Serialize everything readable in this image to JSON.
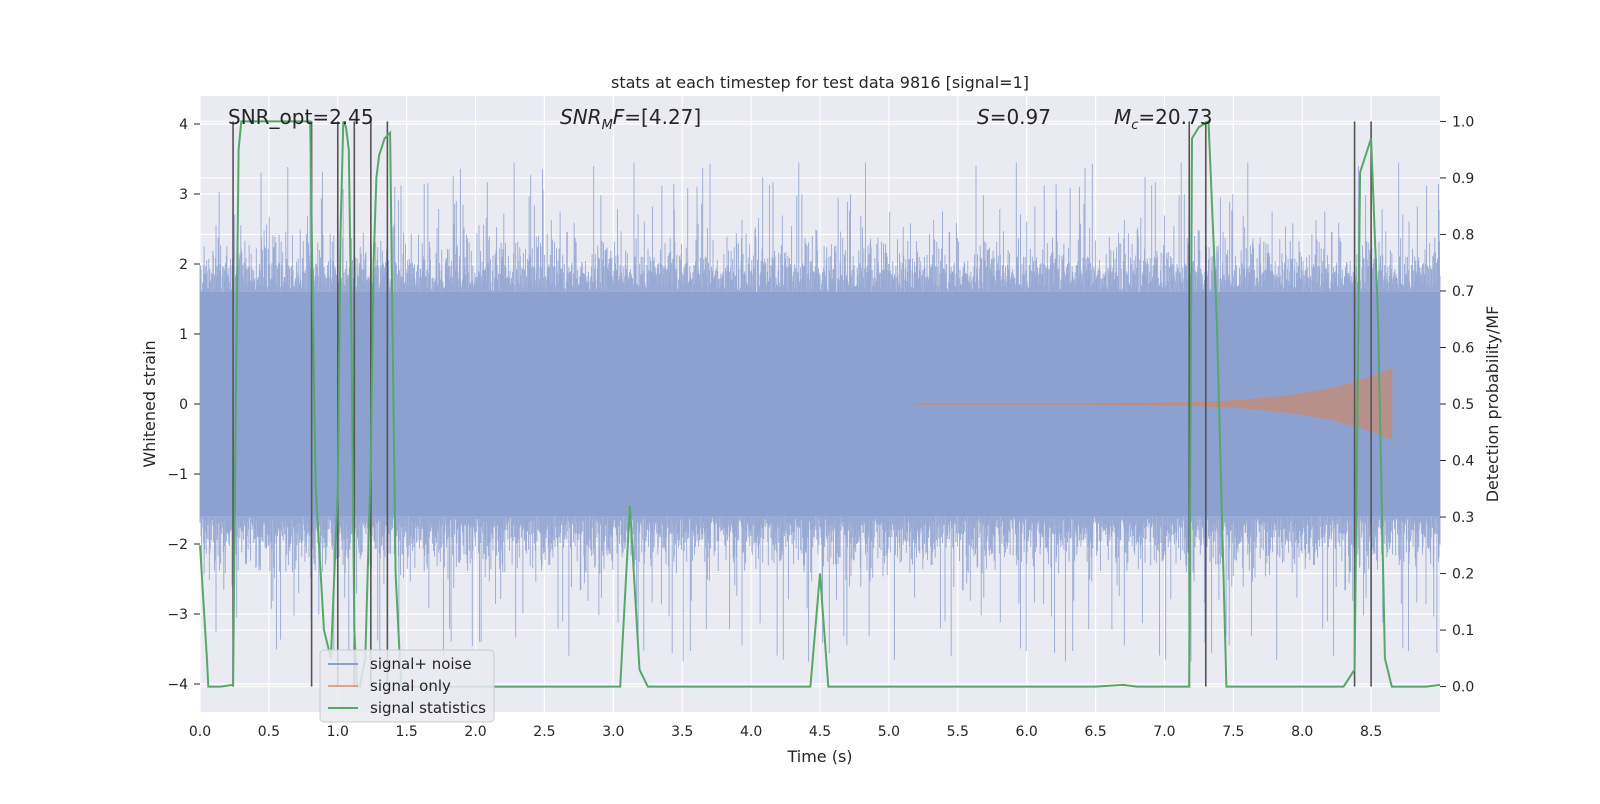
{
  "chart_data": {
    "type": "line",
    "title": "stats at each timestep for test data 9816 [signal=1]",
    "xlabel": "Time (s)",
    "ylabel": "Whitened strain",
    "ylabel_right": "Detection probability/MF",
    "xlim": [
      0.0,
      9.0
    ],
    "ylim": [
      -4.4,
      4.4
    ],
    "ylim_right": [
      -0.045,
      1.045
    ],
    "x_ticks": [
      "0.0",
      "0.5",
      "1.0",
      "1.5",
      "2.0",
      "2.5",
      "3.0",
      "3.5",
      "4.0",
      "4.5",
      "5.0",
      "5.5",
      "6.0",
      "6.5",
      "7.0",
      "7.5",
      "8.0",
      "8.5"
    ],
    "y_ticks": [
      "−4",
      "−3",
      "−2",
      "−1",
      "0",
      "1",
      "2",
      "3",
      "4"
    ],
    "y_ticks_right": [
      "0.0",
      "0.1",
      "0.2",
      "0.3",
      "0.4",
      "0.5",
      "0.6",
      "0.7",
      "0.8",
      "0.9",
      "1.0"
    ],
    "grid": true,
    "legend_position": "lower-left",
    "annotations": {
      "snr_opt": "SNR_opt=2.45",
      "snr_mf_main": "SNR",
      "snr_mf_sub": "M",
      "snr_mf_tail": "F=[4.27]",
      "s_main": "S",
      "s_tail": "=0.97",
      "mc_main": "M",
      "mc_sub": "c",
      "mc_tail": "=20.73"
    },
    "series": [
      {
        "name": "signal+ noise",
        "color": "#8a9ecf",
        "description_of_envelope": "noise band",
        "x_range": [
          0.0,
          9.0
        ],
        "amplitude_bulk": [
          -1.6,
          1.6
        ],
        "amplitude_extremes": [
          -4.1,
          3.45
        ]
      },
      {
        "name": "signal only",
        "color": "#dd8452",
        "chirp_start": 5.2,
        "chirp_peak": 8.65,
        "chirp_peak_amplitude": 0.5
      },
      {
        "name": "signal statistics",
        "color": "#55a868",
        "axis": "right",
        "x": [
          0.0,
          0.05,
          0.06,
          0.08,
          0.15,
          0.24,
          0.26,
          0.28,
          0.3,
          0.32,
          0.35,
          0.5,
          0.6,
          0.7,
          0.8,
          0.82,
          0.84,
          0.9,
          0.95,
          1.0,
          1.02,
          1.04,
          1.06,
          1.08,
          1.1,
          1.12,
          1.14,
          1.16,
          1.2,
          1.24,
          1.26,
          1.28,
          1.3,
          1.34,
          1.38,
          1.42,
          1.46,
          1.5,
          2.0,
          2.5,
          3.05,
          3.12,
          3.19,
          3.25,
          3.5,
          4.0,
          4.43,
          4.5,
          4.56,
          4.8,
          5.0,
          5.5,
          6.0,
          6.5,
          6.7,
          6.8,
          7.0,
          7.18,
          7.2,
          7.25,
          7.32,
          7.38,
          7.45,
          7.6,
          8.0,
          8.3,
          8.38,
          8.42,
          8.5,
          8.55,
          8.6,
          8.65,
          8.7,
          8.9,
          9.0
        ],
        "y": [
          0.25,
          0.05,
          0.0,
          0.0,
          0.0,
          0.003,
          0.5,
          0.95,
          1.0,
          1.0,
          1.0,
          1.0,
          1.0,
          1.0,
          1.0,
          0.65,
          0.35,
          0.1,
          0.05,
          0.35,
          0.8,
          1.0,
          0.99,
          0.95,
          0.6,
          0.1,
          0.0,
          0.0,
          0.05,
          0.4,
          0.75,
          0.9,
          0.94,
          0.97,
          0.98,
          0.2,
          0.0,
          0.0,
          0.0,
          0.0,
          0.0,
          0.32,
          0.03,
          0.0,
          0.0,
          0.0,
          0.0,
          0.2,
          0.0,
          0.0,
          0.0,
          0.0,
          0.0,
          0.0,
          0.003,
          0.0,
          0.0,
          0.0,
          0.97,
          0.99,
          1.0,
          0.65,
          0.0,
          0.0,
          0.0,
          0.0,
          0.03,
          0.91,
          0.97,
          0.65,
          0.05,
          0.0,
          0.0,
          0.0,
          0.003
        ]
      }
    ],
    "vertical_markers_x": [
      0.24,
      0.81,
      1.0,
      1.12,
      1.24,
      1.36,
      7.18,
      7.3,
      8.38,
      8.5
    ]
  }
}
